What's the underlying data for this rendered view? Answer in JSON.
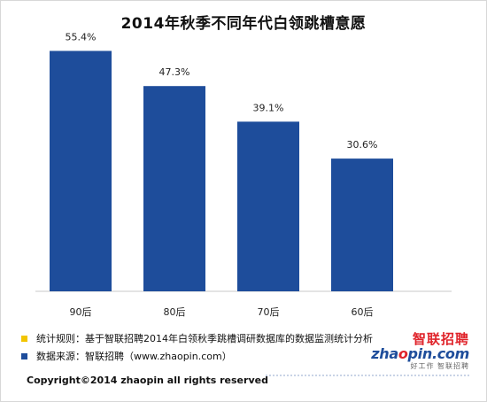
{
  "title": "2014年秋季不同年代白领跳槽意愿",
  "chart_data": {
    "type": "bar",
    "title": "2014年秋季不同年代白领跳槽意愿",
    "categories": [
      "90后",
      "80后",
      "70后",
      "60后"
    ],
    "values": [
      55.4,
      47.3,
      39.1,
      30.6
    ],
    "value_labels": [
      "55.4%",
      "47.3%",
      "39.1%",
      "30.6%"
    ],
    "ylim": [
      0,
      60
    ],
    "xlabel": "",
    "ylabel": "",
    "grid": false,
    "colors": {
      "bar": "#1e4d9b"
    }
  },
  "notes": [
    {
      "text": "统计规则：基于智联招聘2014年白领秋季跳槽调研数据库的数据监测统计分析",
      "color": "#f2c500"
    },
    {
      "text": "数据来源：智联招聘（www.zhaopin.com）",
      "color": "#1e4d9b"
    }
  ],
  "logo": {
    "cn": "智联招聘",
    "en_part1": "zha",
    "en_part2": "o",
    "en_part3": "pin.com",
    "tagline": "好工作 智联招聘"
  },
  "copyright": "Copyright©2014 zhaopin all rights reserved"
}
